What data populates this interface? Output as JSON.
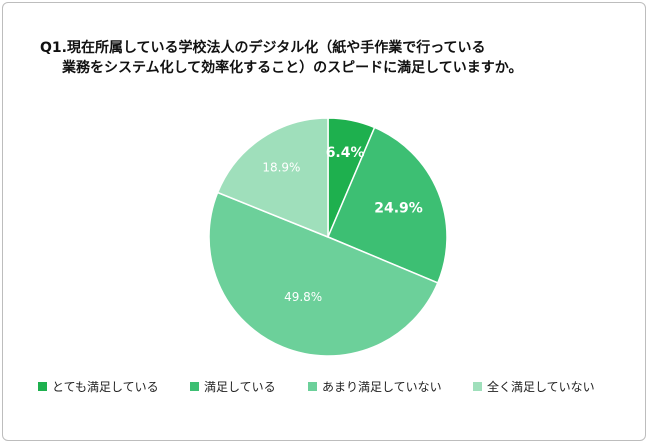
{
  "title": {
    "line1": "Q1.現在所属している学校法人のデジタル化（紙や手作業で行っている",
    "line2": "業務をシステム化して効率化すること）のスピードに満足していますか。"
  },
  "chart_data": {
    "type": "pie",
    "categories": [
      "とても満足している",
      "満足している",
      "あまり満足していない",
      "全く満足していない"
    ],
    "values": [
      6.4,
      24.9,
      49.8,
      18.9
    ],
    "labels": [
      "6.4%",
      "24.9%",
      "49.8%",
      "18.9%"
    ],
    "colors": [
      "#1eb04e",
      "#3dbf73",
      "#6cd09a",
      "#9fdfbb"
    ],
    "legend_position": "bottom",
    "start_angle": "12 o'clock",
    "direction": "clockwise"
  }
}
